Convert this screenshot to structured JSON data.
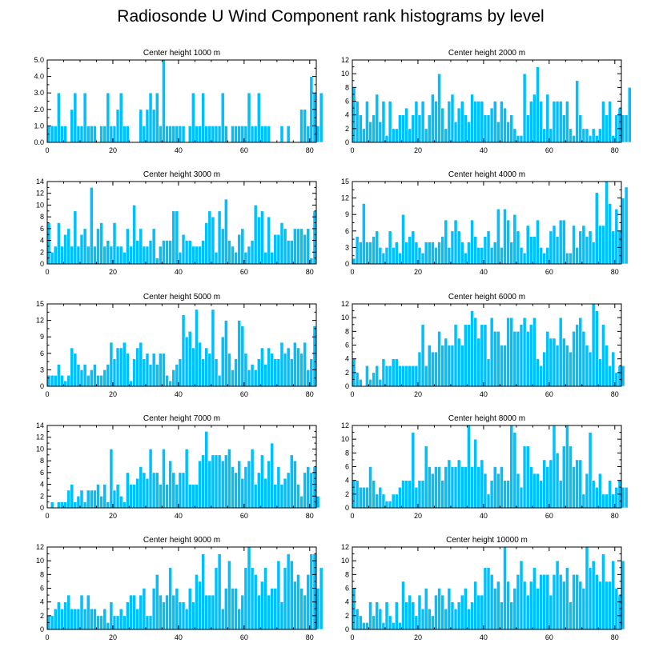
{
  "title": "Radiosonde U Wind Component rank histograms by level",
  "colors": {
    "bar": "#00bfff",
    "axis": "#000000",
    "bar_edge": "#ffffff"
  },
  "chart_data": [
    {
      "type": "bar",
      "title": "Center height 1000 m",
      "xlim": [
        0,
        82
      ],
      "ylim": [
        0,
        5
      ],
      "yticks": [
        0,
        1,
        2,
        3,
        4,
        5
      ],
      "ytick_labels": [
        "0.0",
        "1.0",
        "2.0",
        "3.0",
        "4.0",
        "5.0"
      ],
      "xticks": [
        0,
        20,
        40,
        60,
        80
      ],
      "values": [
        1,
        1,
        1,
        3,
        1,
        1,
        0,
        2,
        3,
        1,
        1,
        3,
        1,
        1,
        1,
        0,
        1,
        1,
        3,
        1,
        1,
        2,
        3,
        1,
        1,
        0,
        0,
        0,
        2,
        1,
        2,
        3,
        2,
        3,
        1,
        5,
        1,
        1,
        1,
        1,
        1,
        1,
        0,
        1,
        3,
        1,
        1,
        3,
        1,
        1,
        1,
        1,
        1,
        3,
        1,
        0,
        1,
        1,
        1,
        1,
        1,
        3,
        1,
        1,
        3,
        1,
        1,
        1,
        0,
        0,
        0,
        1,
        0,
        1,
        0,
        0,
        0,
        2,
        2,
        1,
        4,
        3,
        1,
        3
      ]
    },
    {
      "type": "bar",
      "title": "Center height 2000 m",
      "xlim": [
        0,
        82
      ],
      "ylim": [
        0,
        12
      ],
      "yticks": [
        0,
        2,
        4,
        6,
        8,
        10,
        12
      ],
      "xticks": [
        0,
        20,
        40,
        60,
        80
      ],
      "values": [
        8,
        6,
        4,
        2,
        6,
        3,
        4,
        7,
        3,
        6,
        1,
        6,
        2,
        2,
        4,
        4,
        5,
        2,
        4,
        6,
        4,
        6,
        2,
        4,
        7,
        6,
        10,
        5,
        2,
        6,
        7,
        3,
        5,
        6,
        4,
        3,
        7,
        6,
        6,
        6,
        4,
        4,
        5,
        6,
        3,
        6,
        5,
        3,
        4,
        2,
        1,
        1,
        10,
        4,
        6,
        7,
        11,
        6,
        2,
        7,
        2,
        6,
        6,
        6,
        4,
        6,
        2,
        1,
        9,
        4,
        2,
        2,
        1,
        2,
        1,
        2,
        6,
        4,
        6,
        1,
        4,
        5,
        4,
        4,
        8
      ]
    },
    {
      "type": "bar",
      "title": "Center height 3000 m",
      "xlim": [
        0,
        82
      ],
      "ylim": [
        0,
        14
      ],
      "yticks": [
        0,
        2,
        4,
        6,
        8,
        10,
        12,
        14
      ],
      "xticks": [
        0,
        20,
        40,
        60,
        80
      ],
      "values": [
        7,
        2,
        3,
        7,
        3,
        5,
        6,
        3,
        9,
        3,
        5,
        6,
        3,
        13,
        3,
        6,
        7,
        3,
        4,
        3,
        7,
        3,
        3,
        2,
        6,
        3,
        10,
        4,
        6,
        3,
        3,
        4,
        6,
        1,
        3,
        4,
        4,
        4,
        9,
        9,
        2,
        5,
        4,
        4,
        3,
        3,
        3,
        4,
        7,
        9,
        8,
        2,
        9,
        6,
        11,
        4,
        3,
        2,
        5,
        6,
        2,
        3,
        4,
        10,
        8,
        9,
        2,
        8,
        2,
        5,
        5,
        7,
        6,
        4,
        4,
        6,
        6,
        6,
        5,
        6,
        1,
        9
      ]
    },
    {
      "type": "bar",
      "title": "Center height 4000 m",
      "xlim": [
        0,
        82
      ],
      "ylim": [
        0,
        15
      ],
      "yticks": [
        0,
        3,
        6,
        9,
        12,
        15
      ],
      "xticks": [
        0,
        20,
        40,
        60,
        80
      ],
      "values": [
        1,
        5,
        4,
        11,
        4,
        4,
        5,
        6,
        3,
        2,
        3,
        6,
        3,
        4,
        2,
        9,
        4,
        5,
        6,
        4,
        3,
        2,
        4,
        4,
        4,
        3,
        4,
        5,
        8,
        3,
        6,
        8,
        6,
        4,
        2,
        4,
        8,
        5,
        3,
        3,
        5,
        6,
        3,
        4,
        10,
        3,
        10,
        8,
        4,
        9,
        6,
        3,
        2,
        7,
        5,
        5,
        8,
        3,
        2,
        3,
        6,
        7,
        5,
        8,
        8,
        2,
        2,
        7,
        3,
        6,
        7,
        5,
        6,
        4,
        13,
        7,
        7,
        15,
        11,
        6,
        10,
        6,
        12,
        14
      ]
    },
    {
      "type": "bar",
      "title": "Center height 5000 m",
      "xlim": [
        0,
        82
      ],
      "ylim": [
        0,
        15
      ],
      "yticks": [
        0,
        3,
        6,
        9,
        12,
        15
      ],
      "xticks": [
        0,
        20,
        40,
        60,
        80
      ],
      "values": [
        2,
        2,
        2,
        4,
        2,
        1,
        2,
        7,
        6,
        4,
        3,
        4,
        2,
        3,
        4,
        2,
        2,
        3,
        4,
        8,
        5,
        7,
        7,
        8,
        6,
        1,
        5,
        7,
        8,
        5,
        6,
        4,
        6,
        4,
        6,
        6,
        2,
        1,
        3,
        4,
        5,
        13,
        9,
        10,
        7,
        14,
        8,
        5,
        7,
        6,
        14,
        5,
        2,
        9,
        12,
        6,
        3,
        5,
        12,
        11,
        6,
        3,
        4,
        3,
        5,
        7,
        4,
        7,
        6,
        5,
        5,
        8,
        6,
        7,
        5,
        8,
        7,
        6,
        8,
        3,
        5,
        11
      ]
    },
    {
      "type": "bar",
      "title": "Center height 6000 m",
      "xlim": [
        0,
        82
      ],
      "ylim": [
        0,
        12
      ],
      "yticks": [
        0,
        2,
        4,
        6,
        8,
        10,
        12
      ],
      "xticks": [
        0,
        20,
        40,
        60,
        80
      ],
      "values": [
        4,
        2,
        1,
        0,
        3,
        1,
        2,
        3,
        1,
        4,
        3,
        3,
        4,
        4,
        3,
        3,
        3,
        3,
        3,
        3,
        5,
        9,
        3,
        6,
        5,
        5,
        8,
        6,
        7,
        6,
        6,
        9,
        7,
        6,
        9,
        9,
        11,
        10,
        7,
        9,
        9,
        4,
        10,
        8,
        8,
        6,
        6,
        10,
        10,
        8,
        8,
        9,
        10,
        8,
        9,
        10,
        4,
        3,
        5,
        8,
        7,
        7,
        6,
        10,
        7,
        6,
        5,
        8,
        9,
        10,
        8,
        6,
        5,
        12,
        11,
        4,
        9,
        6,
        3,
        5,
        2,
        3,
        3
      ]
    },
    {
      "type": "bar",
      "title": "Center height 7000 m",
      "xlim": [
        0,
        82
      ],
      "ylim": [
        0,
        14
      ],
      "yticks": [
        0,
        2,
        4,
        6,
        8,
        10,
        12,
        14
      ],
      "xticks": [
        0,
        20,
        40,
        60,
        80
      ],
      "values": [
        0,
        1,
        0,
        1,
        1,
        1,
        3,
        4,
        1,
        2,
        3,
        1,
        3,
        3,
        3,
        4,
        2,
        4,
        1,
        10,
        3,
        4,
        2,
        1,
        6,
        4,
        4,
        5,
        7,
        6,
        5,
        10,
        6,
        6,
        4,
        10,
        4,
        8,
        6,
        4,
        6,
        6,
        10,
        4,
        4,
        4,
        8,
        9,
        13,
        8,
        9,
        9,
        9,
        8,
        9,
        10,
        7,
        6,
        8,
        5,
        7,
        8,
        10,
        4,
        6,
        9,
        5,
        8,
        11,
        4,
        7,
        4,
        5,
        6,
        9,
        8,
        4,
        2,
        6,
        7,
        6,
        7,
        2
      ]
    },
    {
      "type": "bar",
      "title": "Center height 8000 m",
      "xlim": [
        0,
        82
      ],
      "ylim": [
        0,
        12
      ],
      "yticks": [
        0,
        2,
        4,
        6,
        8,
        10,
        12
      ],
      "xticks": [
        0,
        20,
        40,
        60,
        80
      ],
      "values": [
        4,
        4,
        3,
        3,
        3,
        6,
        4,
        2,
        3,
        2,
        1,
        1,
        2,
        2,
        3,
        4,
        4,
        4,
        11,
        3,
        4,
        4,
        9,
        6,
        5,
        6,
        6,
        4,
        6,
        7,
        6,
        6,
        7,
        6,
        6,
        12,
        6,
        10,
        6,
        7,
        5,
        2,
        4,
        6,
        5,
        6,
        4,
        4,
        12,
        11,
        5,
        3,
        9,
        9,
        6,
        5,
        5,
        4,
        7,
        6,
        7,
        12,
        8,
        4,
        9,
        12,
        9,
        6,
        7,
        7,
        2,
        5,
        11,
        4,
        3,
        5,
        2,
        2,
        4,
        2,
        3,
        4,
        3,
        3
      ]
    },
    {
      "type": "bar",
      "title": "Center height 9000 m",
      "xlim": [
        0,
        82
      ],
      "ylim": [
        0,
        12
      ],
      "yticks": [
        0,
        2,
        4,
        6,
        8,
        10,
        12
      ],
      "xticks": [
        0,
        20,
        40,
        60,
        80
      ],
      "values": [
        2,
        2,
        3,
        4,
        3,
        4,
        5,
        3,
        3,
        3,
        5,
        3,
        5,
        3,
        3,
        2,
        2,
        3,
        1,
        4,
        2,
        2,
        3,
        2,
        4,
        5,
        5,
        3,
        5,
        6,
        2,
        2,
        6,
        8,
        5,
        4,
        5,
        9,
        5,
        6,
        4,
        4,
        3,
        6,
        4,
        8,
        7,
        11,
        5,
        5,
        5,
        9,
        11,
        3,
        6,
        10,
        6,
        6,
        3,
        5,
        9,
        12,
        9,
        8,
        5,
        7,
        9,
        5,
        6,
        6,
        10,
        4,
        9,
        11,
        10,
        7,
        8,
        6,
        5,
        8,
        11,
        11,
        6,
        9
      ]
    },
    {
      "type": "bar",
      "title": "Center height 10000 m",
      "xlim": [
        0,
        82
      ],
      "ylim": [
        0,
        12
      ],
      "yticks": [
        0,
        2,
        4,
        6,
        8,
        10,
        12
      ],
      "xticks": [
        0,
        20,
        40,
        60,
        80
      ],
      "values": [
        6,
        3,
        2,
        1,
        1,
        4,
        2,
        4,
        3,
        1,
        4,
        2,
        1,
        4,
        1,
        7,
        4,
        5,
        4,
        2,
        5,
        3,
        6,
        3,
        2,
        5,
        6,
        5,
        3,
        6,
        4,
        3,
        4,
        5,
        6,
        3,
        4,
        7,
        5,
        5,
        9,
        9,
        8,
        6,
        7,
        4,
        12,
        7,
        4,
        6,
        8,
        10,
        7,
        5,
        7,
        9,
        6,
        8,
        8,
        8,
        5,
        8,
        10,
        8,
        7,
        9,
        4,
        8,
        8,
        7,
        6,
        12,
        9,
        10,
        8,
        7,
        11,
        7,
        7,
        10,
        6,
        5,
        10
      ]
    }
  ]
}
